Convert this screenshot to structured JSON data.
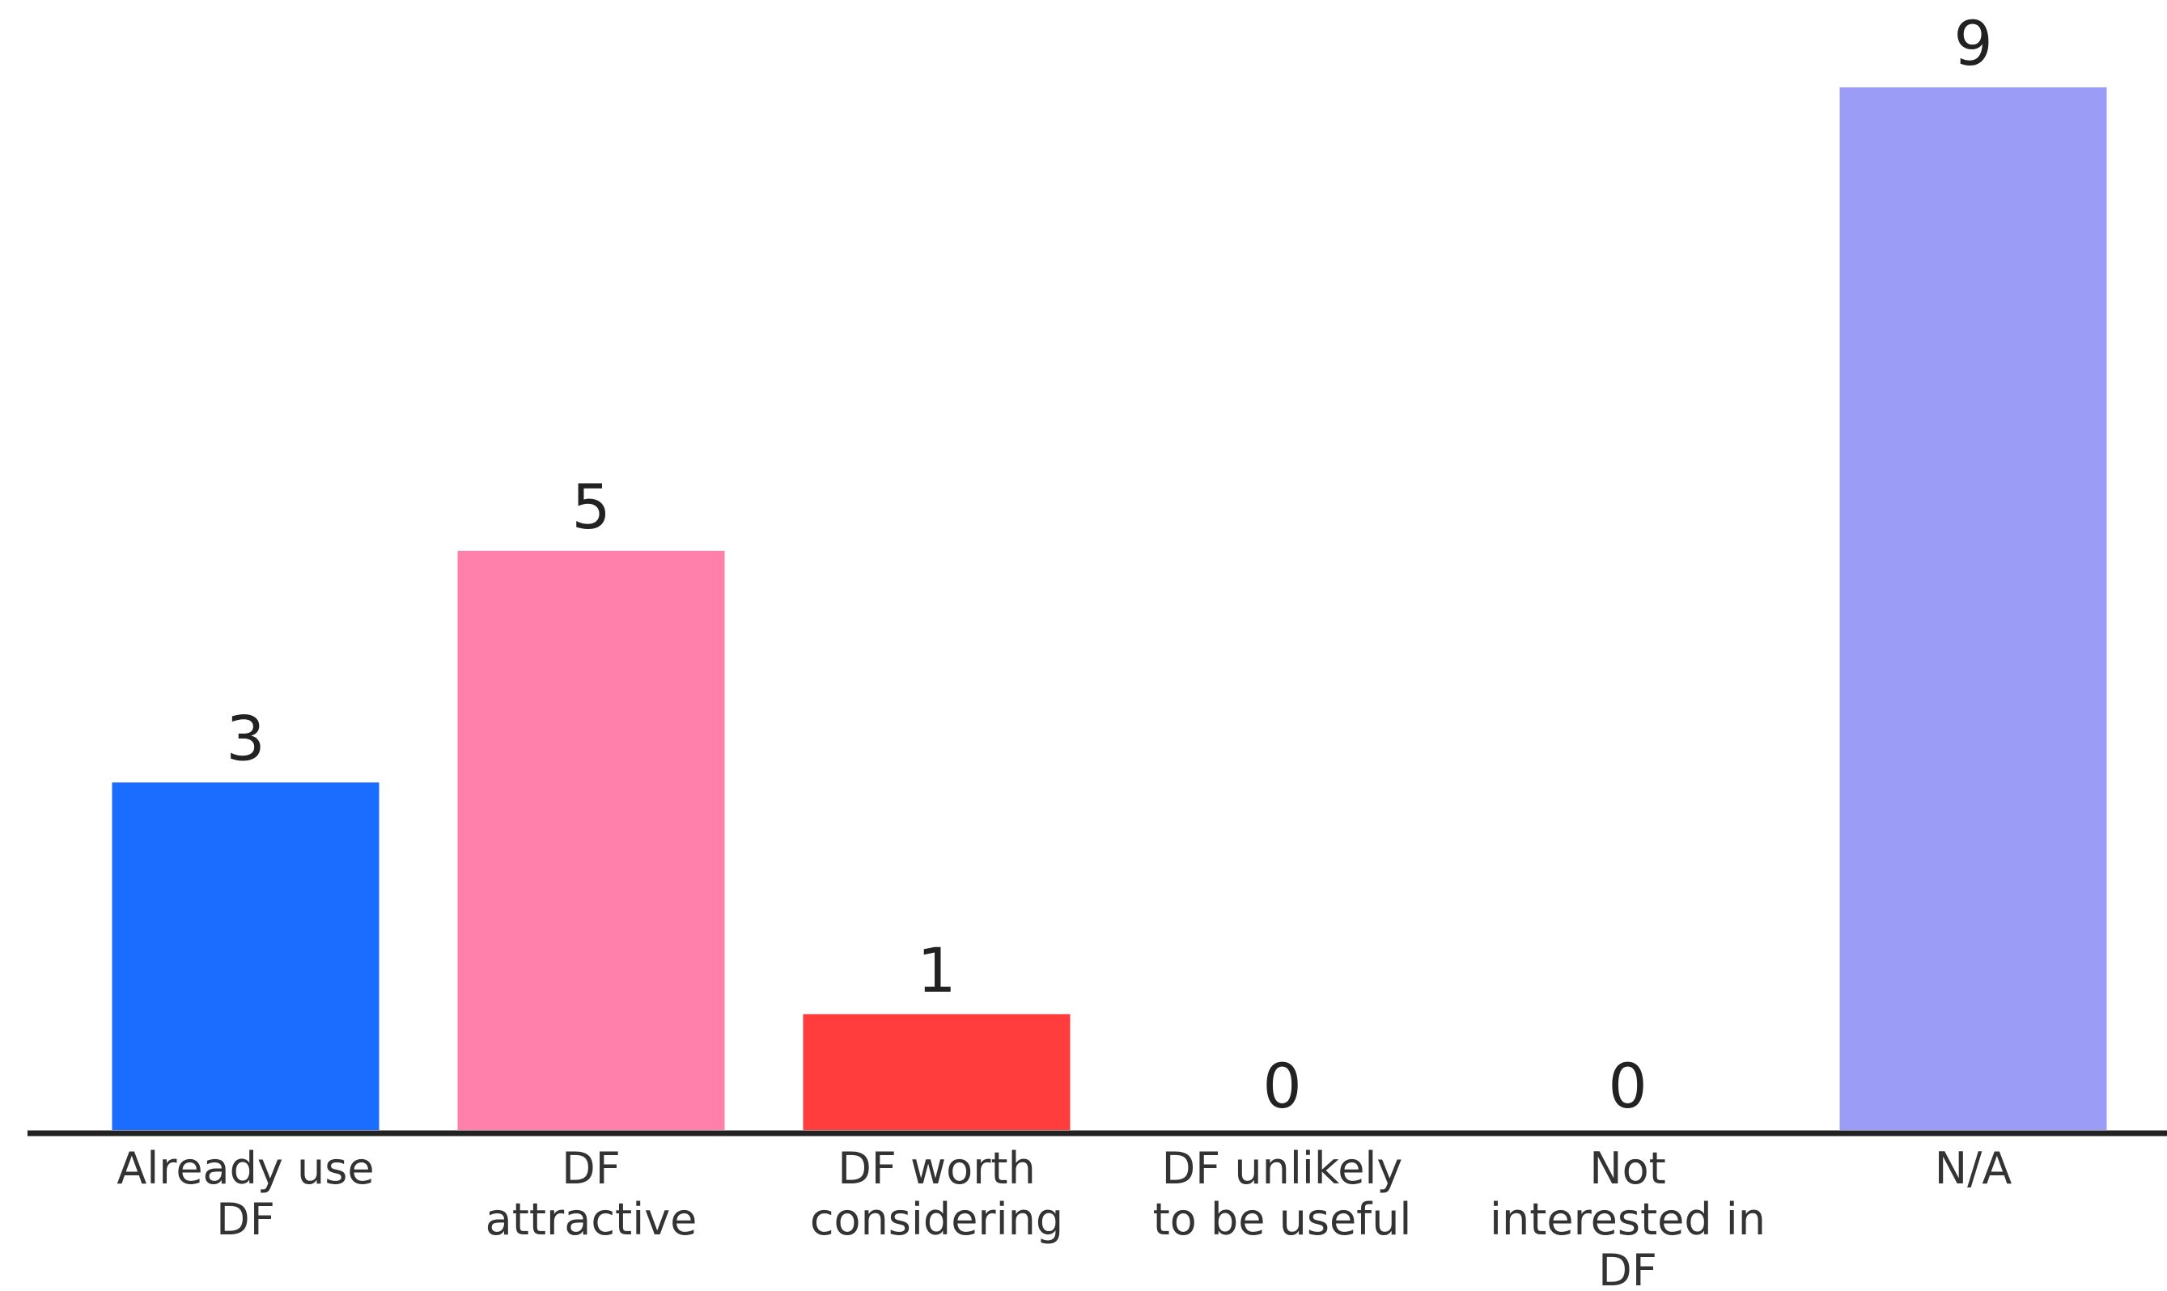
{
  "chart_data": {
    "type": "bar",
    "categories": [
      [
        "Already use",
        "DF"
      ],
      [
        "DF",
        "attractive"
      ],
      [
        "DF worth",
        "considering"
      ],
      [
        "DF unlikely",
        "to be useful"
      ],
      [
        "Not",
        "interested in",
        "DF"
      ],
      [
        "N/A"
      ]
    ],
    "values": [
      3,
      5,
      1,
      0,
      0,
      9
    ],
    "colors": [
      "#1a6dff",
      "#ff80aa",
      "#ff3d3d",
      null,
      null,
      "#9b9cf5"
    ],
    "ylim": [
      0,
      9
    ]
  }
}
